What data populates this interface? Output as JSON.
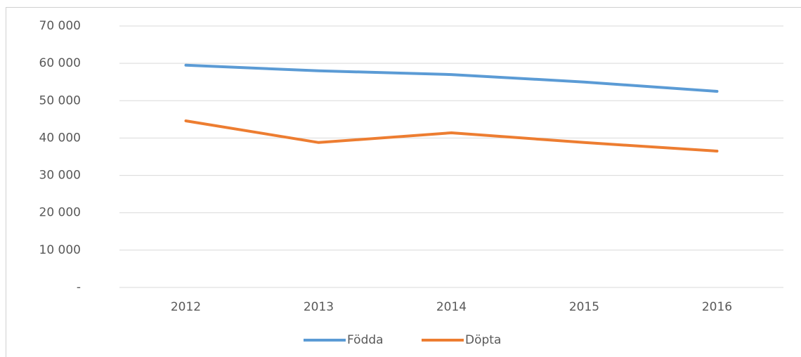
{
  "chart_data": {
    "type": "line",
    "categories": [
      "2012",
      "2013",
      "2014",
      "2015",
      "2016"
    ],
    "series": [
      {
        "name": "Födda",
        "color": "#5b9bd5",
        "values": [
          59500,
          58000,
          57000,
          55000,
          52500
        ]
      },
      {
        "name": "Döpta",
        "color": "#ed7d31",
        "values": [
          44600,
          38800,
          41400,
          38800,
          36500
        ]
      }
    ],
    "ylim": [
      0,
      70000
    ],
    "yticks": [
      {
        "value": 0,
        "label": "-"
      },
      {
        "value": 10000,
        "label": "10 000"
      },
      {
        "value": 20000,
        "label": "20 000"
      },
      {
        "value": 30000,
        "label": "30 000"
      },
      {
        "value": 40000,
        "label": "40 000"
      },
      {
        "value": 50000,
        "label": "50 000"
      },
      {
        "value": 60000,
        "label": "60 000"
      },
      {
        "value": 70000,
        "label": "70 000"
      }
    ],
    "grid": true,
    "legend": "bottom"
  }
}
